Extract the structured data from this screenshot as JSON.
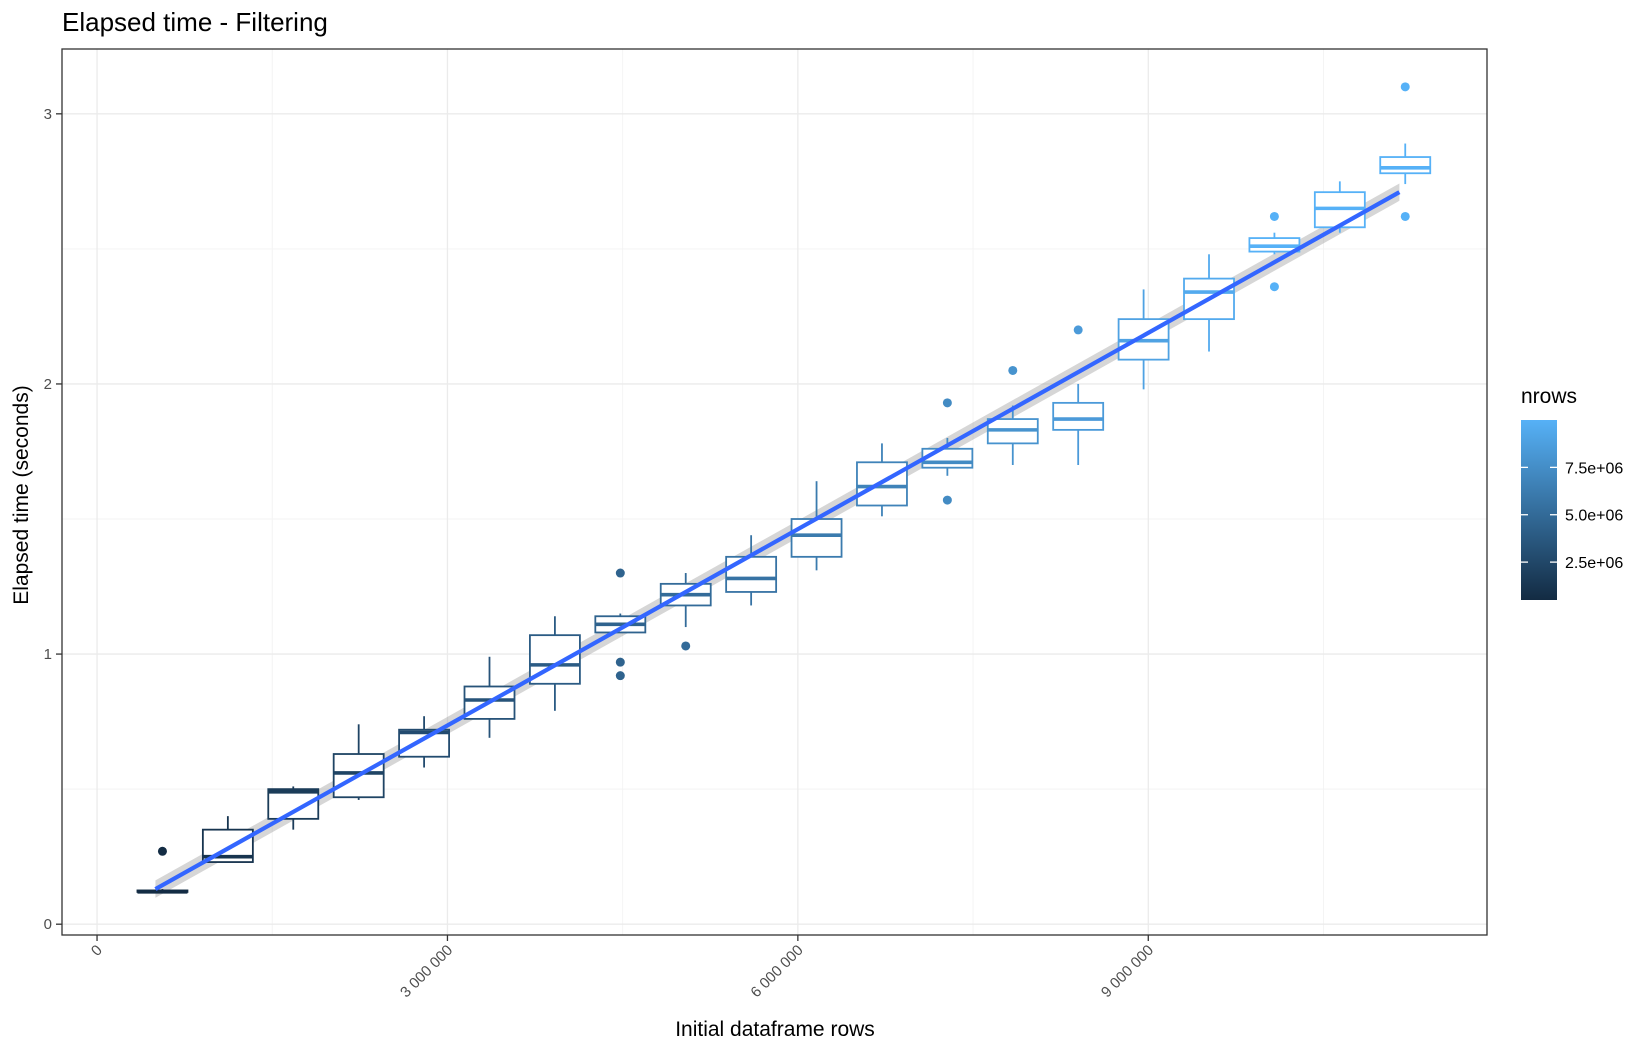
{
  "chart_data": {
    "type": "boxplot",
    "title": "Elapsed time - Filtering",
    "xlabel": "Initial dataframe rows",
    "ylabel": "Elapsed time (seconds)",
    "xlim": [
      -300000,
      11900000
    ],
    "ylim": [
      -0.04,
      3.24
    ],
    "x_ticks": [
      0,
      3000000,
      6000000,
      9000000
    ],
    "x_tick_labels": [
      "0",
      "3 000 000",
      "6 000 000",
      "9 000 000"
    ],
    "y_ticks": [
      0,
      1,
      2,
      3
    ],
    "y_tick_labels": [
      "0",
      "1",
      "2",
      "3"
    ],
    "grid": true,
    "legend": {
      "title": "nrows",
      "placement": "right",
      "min": 500000,
      "max": 10000000,
      "breaks": [
        2500000,
        5000000,
        7500000
      ],
      "labels": [
        "2.5e+06",
        "5.0e+06",
        "7.5e+06"
      ],
      "color_low": "#132b43",
      "color_high": "#56b1f7"
    },
    "smooth": {
      "color": "#3366ff",
      "band_color": "#999999",
      "x": [
        500000,
        11150000
      ],
      "y": [
        0.13,
        2.71
      ],
      "se_halfwidth": 0.02
    },
    "boxes": [
      {
        "x": 560000,
        "lower": 0.12,
        "q1": 0.12,
        "median": 0.12,
        "q3": 0.125,
        "upper": 0.13,
        "outliers": [
          0.27
        ]
      },
      {
        "x": 1120000,
        "lower": 0.23,
        "q1": 0.23,
        "median": 0.25,
        "q3": 0.35,
        "upper": 0.4,
        "outliers": []
      },
      {
        "x": 1680000,
        "lower": 0.35,
        "q1": 0.39,
        "median": 0.49,
        "q3": 0.5,
        "upper": 0.51,
        "outliers": []
      },
      {
        "x": 2240000,
        "lower": 0.46,
        "q1": 0.47,
        "median": 0.56,
        "q3": 0.63,
        "upper": 0.74,
        "outliers": []
      },
      {
        "x": 2800000,
        "lower": 0.58,
        "q1": 0.62,
        "median": 0.71,
        "q3": 0.72,
        "upper": 0.77,
        "outliers": []
      },
      {
        "x": 3360000,
        "lower": 0.69,
        "q1": 0.76,
        "median": 0.83,
        "q3": 0.88,
        "upper": 0.99,
        "outliers": []
      },
      {
        "x": 3920000,
        "lower": 0.79,
        "q1": 0.89,
        "median": 0.96,
        "q3": 1.07,
        "upper": 1.14,
        "outliers": []
      },
      {
        "x": 4480000,
        "lower": 1.08,
        "q1": 1.08,
        "median": 1.11,
        "q3": 1.14,
        "upper": 1.15,
        "outliers": [
          1.3,
          0.97,
          0.92
        ]
      },
      {
        "x": 5040000,
        "lower": 1.1,
        "q1": 1.18,
        "median": 1.22,
        "q3": 1.26,
        "upper": 1.3,
        "outliers": [
          1.03
        ]
      },
      {
        "x": 5600000,
        "lower": 1.18,
        "q1": 1.23,
        "median": 1.28,
        "q3": 1.36,
        "upper": 1.44,
        "outliers": []
      },
      {
        "x": 6160000,
        "lower": 1.31,
        "q1": 1.36,
        "median": 1.44,
        "q3": 1.5,
        "upper": 1.64,
        "outliers": []
      },
      {
        "x": 6720000,
        "lower": 1.51,
        "q1": 1.55,
        "median": 1.62,
        "q3": 1.71,
        "upper": 1.78,
        "outliers": []
      },
      {
        "x": 7280000,
        "lower": 1.66,
        "q1": 1.69,
        "median": 1.71,
        "q3": 1.76,
        "upper": 1.8,
        "outliers": [
          1.93,
          1.57
        ]
      },
      {
        "x": 7840000,
        "lower": 1.7,
        "q1": 1.78,
        "median": 1.83,
        "q3": 1.87,
        "upper": 1.92,
        "outliers": [
          2.05
        ]
      },
      {
        "x": 8400000,
        "lower": 1.7,
        "q1": 1.83,
        "median": 1.87,
        "q3": 1.93,
        "upper": 2.0,
        "outliers": [
          2.2
        ]
      },
      {
        "x": 8960000,
        "lower": 1.98,
        "q1": 2.09,
        "median": 2.16,
        "q3": 2.24,
        "upper": 2.35,
        "outliers": []
      },
      {
        "x": 9520000,
        "lower": 2.12,
        "q1": 2.24,
        "median": 2.34,
        "q3": 2.39,
        "upper": 2.48,
        "outliers": []
      },
      {
        "x": 10080000,
        "lower": 2.48,
        "q1": 2.49,
        "median": 2.51,
        "q3": 2.54,
        "upper": 2.56,
        "outliers": [
          2.62,
          2.36
        ]
      },
      {
        "x": 10640000,
        "lower": 2.56,
        "q1": 2.58,
        "median": 2.65,
        "q3": 2.71,
        "upper": 2.75,
        "outliers": []
      },
      {
        "x": 11200000,
        "lower": 2.74,
        "q1": 2.78,
        "median": 2.8,
        "q3": 2.84,
        "upper": 2.89,
        "outliers": [
          3.1,
          2.62
        ]
      }
    ]
  }
}
